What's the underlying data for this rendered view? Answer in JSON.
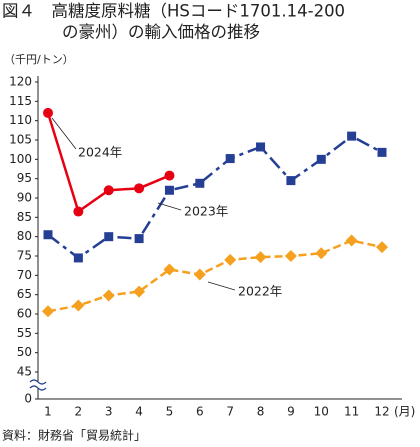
{
  "chart_data": {
    "type": "line",
    "title": [
      "図４　高糖度原料糖（HSコード1701.14-200",
      "の豪州）の輸入価格の推移"
    ],
    "y_label": "（千円/トン）",
    "x_label": "(月)",
    "source": "資料：財務省「貿易統計」",
    "categories": [
      "1",
      "2",
      "3",
      "4",
      "5",
      "6",
      "7",
      "8",
      "9",
      "10",
      "11",
      "12"
    ],
    "series": [
      {
        "name": "2024年",
        "color": "#e60012",
        "marker": "circle",
        "dash": "solid",
        "values": [
          112,
          86.5,
          92,
          92.5,
          95.8,
          null,
          null,
          null,
          null,
          null,
          null,
          null
        ]
      },
      {
        "name": "2023年",
        "color": "#253f94",
        "marker": "square",
        "dash": "dashdot",
        "values": [
          80.5,
          74.5,
          80,
          79.5,
          92,
          93.8,
          100.2,
          103.2,
          94.5,
          100,
          106,
          101.8
        ]
      },
      {
        "name": "2022年",
        "color": "#f5a01e",
        "marker": "diamond",
        "dash": "dashed",
        "values": [
          60.7,
          62.2,
          64.8,
          65.8,
          71.5,
          70.2,
          74,
          74.7,
          75,
          75.7,
          79,
          77.3
        ]
      }
    ],
    "ylim": [
      0,
      120
    ],
    "axis_break": true,
    "yticks": [
      0,
      45,
      50,
      55,
      60,
      65,
      70,
      75,
      80,
      85,
      90,
      95,
      100,
      105,
      110,
      115,
      120
    ]
  }
}
